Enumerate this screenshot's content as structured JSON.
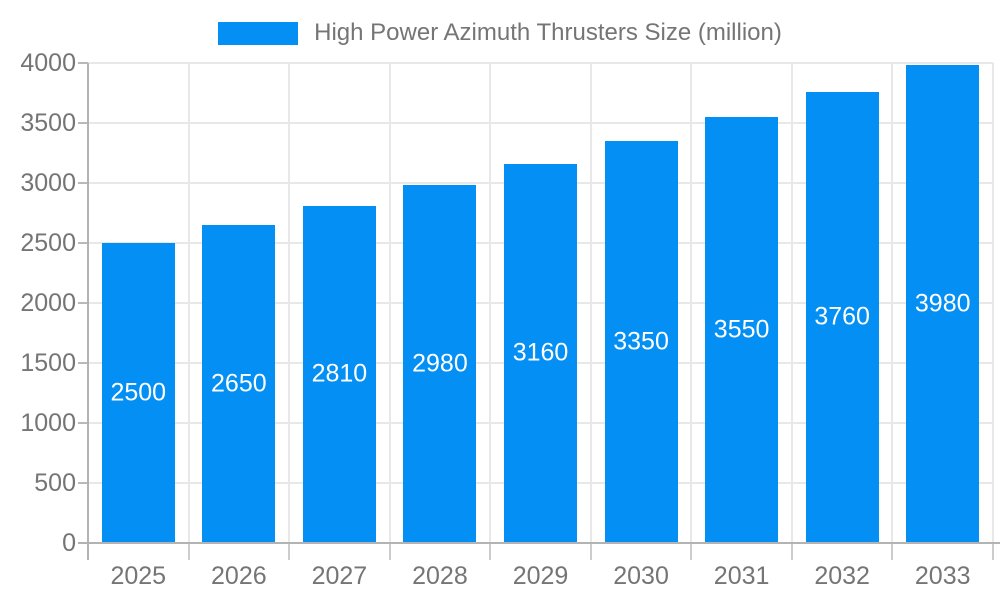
{
  "legend": {
    "label": "High Power Azimuth Thrusters Size (million)"
  },
  "chart_data": {
    "type": "bar",
    "title": "High Power Azimuth Thrusters Size (million)",
    "categories": [
      "2025",
      "2026",
      "2027",
      "2028",
      "2029",
      "2030",
      "2031",
      "2032",
      "2033"
    ],
    "values": [
      2500,
      2650,
      2810,
      2980,
      3160,
      3350,
      3550,
      3760,
      3980
    ],
    "xlabel": "",
    "ylabel": "",
    "ylim": [
      0,
      4000
    ],
    "ytick_step": 500,
    "grid": true,
    "legend_position": "top",
    "bar_color": "#038ff4",
    "value_label_color": "#ffffff",
    "axis_text_color": "#757575",
    "grid_color": "#e8e8e8",
    "axis_line_color": "#b3b3b3"
  }
}
